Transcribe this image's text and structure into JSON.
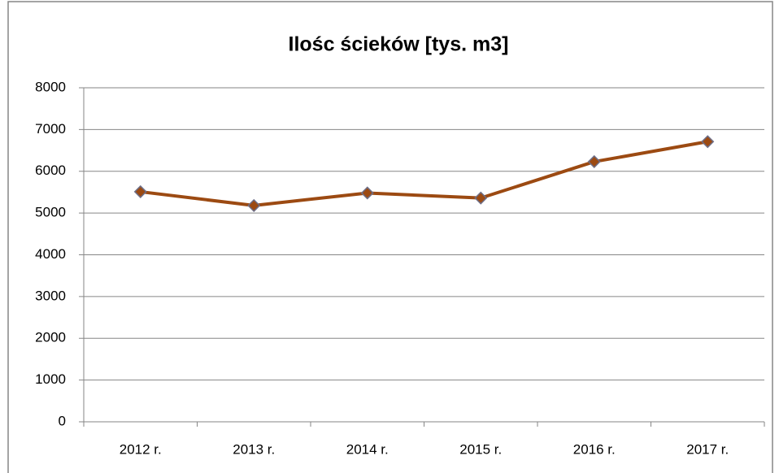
{
  "chart_data": {
    "type": "line",
    "title": "Ilośc ścieków [tys. m3]",
    "categories": [
      "2012 r.",
      "2013 r.",
      "2014 r.",
      "2015 r.",
      "2016 r.",
      "2017 r."
    ],
    "values": [
      5510,
      5180,
      5480,
      5360,
      6230,
      6710
    ],
    "color": "#9c4a12",
    "ylim": [
      0,
      8000
    ],
    "yticks": [
      0,
      1000,
      2000,
      3000,
      4000,
      5000,
      6000,
      7000,
      8000
    ],
    "grid": true
  }
}
